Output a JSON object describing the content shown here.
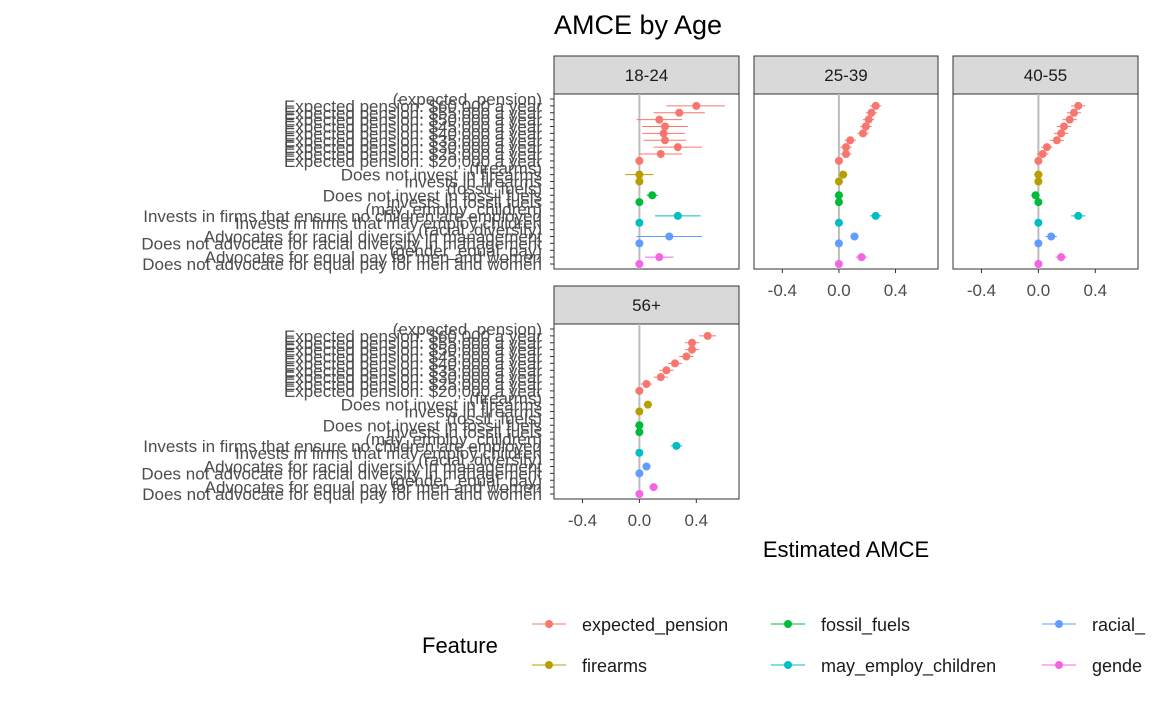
{
  "chart_data": {
    "type": "scatter",
    "title": "AMCE by Age",
    "xlabel": "Estimated AMCE",
    "xlim": [
      -0.6,
      0.7
    ],
    "xticks": [
      "-0.4",
      "0.0",
      "0.4"
    ],
    "xtick_values": [
      -0.4,
      0.0,
      0.4
    ],
    "reference_line": 0,
    "levels": [
      "(expected_pension)",
      "Expected pension: $60,000 a year",
      "Expected pension: $55,000 a year",
      "Expected pension: $50,000 a year",
      "Expected pension: $45,000 a year",
      "Expected pension: $40,000 a year",
      "Expected pension: $35,000 a year",
      "Expected pension: $30,000 a year",
      "Expected pension: $25,000 a year",
      "Expected pension: $20,000 a year",
      "(firearms)",
      "Does not invest in firearms",
      "Invests in firearms",
      "(fossil_fuels)",
      "Does not invest in fossil fuels",
      "Invests in fossil fuels",
      "(may_employ_children)",
      "Invests in firms that ensure no children are employed",
      "Invests in firms that may employ children",
      "(racial_diversity)",
      "Advocates for racial diversity in management",
      "Does not advocate for racial diversity in management",
      "(gender_equal_pay)",
      "Advocates for equal pay for men and women",
      "Does not advocate for equal pay for men and women"
    ],
    "level_features": [
      "expected_pension",
      "expected_pension",
      "expected_pension",
      "expected_pension",
      "expected_pension",
      "expected_pension",
      "expected_pension",
      "expected_pension",
      "expected_pension",
      "expected_pension",
      "firearms",
      "firearms",
      "firearms",
      "fossil_fuels",
      "fossil_fuels",
      "fossil_fuels",
      "may_employ_children",
      "may_employ_children",
      "may_employ_children",
      "racial_diversity",
      "racial_diversity",
      "racial_diversity",
      "gender_equal_pay",
      "gender_equal_pay",
      "gender_equal_pay"
    ],
    "panels": [
      {
        "name": "18-24",
        "estimates": [
          null,
          0.4,
          0.28,
          0.14,
          0.18,
          0.17,
          0.18,
          0.27,
          0.15,
          0.0,
          null,
          0.0,
          0.0,
          null,
          0.09,
          0.0,
          null,
          0.27,
          0.0,
          null,
          0.21,
          0.0,
          null,
          0.14,
          0.0
        ],
        "lower": [
          null,
          0.19,
          0.1,
          -0.02,
          0.02,
          0.02,
          0.03,
          0.1,
          0.0,
          0.0,
          null,
          -0.1,
          0.0,
          null,
          0.05,
          0.0,
          null,
          0.11,
          0.0,
          null,
          -0.02,
          0.0,
          null,
          0.04,
          0.0
        ],
        "upper": [
          null,
          0.6,
          0.46,
          0.3,
          0.34,
          0.32,
          0.33,
          0.44,
          0.3,
          0.0,
          null,
          0.1,
          0.0,
          null,
          0.13,
          0.0,
          null,
          0.43,
          0.0,
          null,
          0.44,
          0.0,
          null,
          0.24,
          0.0
        ]
      },
      {
        "name": "25-39",
        "estimates": [
          null,
          0.26,
          0.23,
          0.21,
          0.19,
          0.17,
          0.08,
          0.05,
          0.05,
          0.0,
          null,
          0.03,
          0.0,
          null,
          0.0,
          0.0,
          null,
          0.26,
          0.0,
          null,
          0.11,
          0.0,
          null,
          0.16,
          0.0
        ],
        "lower": [
          null,
          0.22,
          0.19,
          0.17,
          0.15,
          0.13,
          0.04,
          0.01,
          0.01,
          0.0,
          null,
          0.0,
          0.0,
          null,
          -0.03,
          0.0,
          null,
          0.22,
          0.0,
          null,
          0.08,
          0.0,
          null,
          0.12,
          0.0
        ],
        "upper": [
          null,
          0.3,
          0.27,
          0.25,
          0.23,
          0.21,
          0.12,
          0.09,
          0.09,
          0.0,
          null,
          0.06,
          0.0,
          null,
          0.03,
          0.0,
          null,
          0.3,
          0.0,
          null,
          0.14,
          0.0,
          null,
          0.2,
          0.0
        ]
      },
      {
        "name": "40-55",
        "estimates": [
          null,
          0.28,
          0.25,
          0.22,
          0.18,
          0.16,
          0.13,
          0.06,
          0.03,
          0.0,
          null,
          0.0,
          0.0,
          null,
          -0.02,
          0.0,
          null,
          0.28,
          0.0,
          null,
          0.09,
          0.0,
          null,
          0.16,
          0.0
        ],
        "lower": [
          null,
          0.23,
          0.2,
          0.17,
          0.13,
          0.11,
          0.08,
          0.02,
          -0.01,
          0.0,
          null,
          -0.03,
          0.0,
          null,
          -0.05,
          0.0,
          null,
          0.23,
          0.0,
          null,
          0.05,
          0.0,
          null,
          0.12,
          0.0
        ],
        "upper": [
          null,
          0.33,
          0.3,
          0.27,
          0.23,
          0.21,
          0.18,
          0.1,
          0.07,
          0.0,
          null,
          0.03,
          0.0,
          null,
          0.01,
          0.0,
          null,
          0.33,
          0.0,
          null,
          0.13,
          0.0,
          null,
          0.2,
          0.0
        ]
      },
      {
        "name": "56+",
        "estimates": [
          null,
          0.48,
          0.37,
          0.37,
          0.33,
          0.25,
          0.19,
          0.15,
          0.05,
          0.0,
          null,
          0.06,
          0.0,
          null,
          0.0,
          0.0,
          null,
          0.26,
          0.0,
          null,
          0.05,
          0.0,
          null,
          0.1,
          0.0
        ],
        "lower": [
          null,
          0.42,
          0.32,
          0.32,
          0.28,
          0.2,
          0.14,
          0.1,
          0.01,
          0.0,
          null,
          0.03,
          0.0,
          null,
          -0.03,
          0.0,
          null,
          0.22,
          0.0,
          null,
          0.02,
          0.0,
          null,
          0.07,
          0.0
        ],
        "upper": [
          null,
          0.54,
          0.42,
          0.42,
          0.38,
          0.3,
          0.24,
          0.2,
          0.09,
          0.0,
          null,
          0.09,
          0.0,
          null,
          0.03,
          0.0,
          null,
          0.3,
          0.0,
          null,
          0.08,
          0.0,
          null,
          0.13,
          0.0
        ]
      }
    ],
    "legend": {
      "title": "Feature",
      "placement": "bottom",
      "entries": [
        {
          "name": "expected_pension",
          "color": "#F8766D"
        },
        {
          "name": "firearms",
          "color": "#B79F00"
        },
        {
          "name": "fossil_fuels",
          "color": "#00BA38"
        },
        {
          "name": "may_employ_children",
          "color": "#00BFC4"
        },
        {
          "name": "racial_",
          "color": "#619CFF"
        },
        {
          "name": "gende",
          "color": "#F564E3"
        }
      ]
    },
    "feature_colors": {
      "expected_pension": "#F8766D",
      "firearms": "#B79F00",
      "fossil_fuels": "#00BA38",
      "may_employ_children": "#00BFC4",
      "racial_diversity": "#619CFF",
      "gender_equal_pay": "#F564E3"
    },
    "colors": {
      "strip_fill": "#d9d9d9",
      "panel_border": "#333333",
      "zero_line": "#bdbdbd"
    }
  }
}
